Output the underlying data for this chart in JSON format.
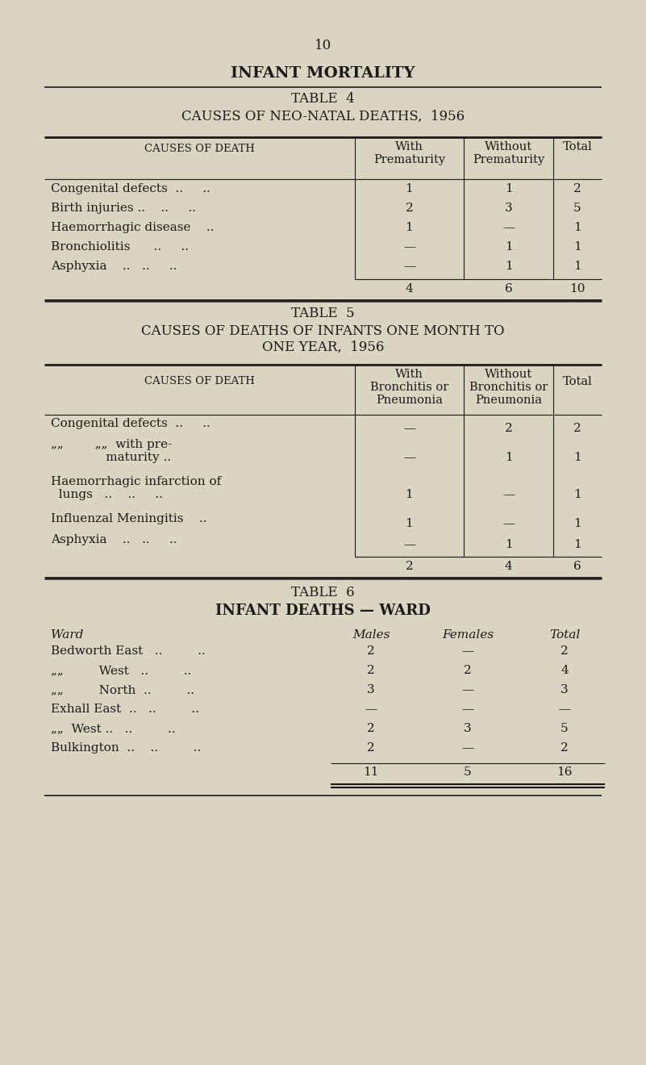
{
  "bg_color": "#d9d5c1",
  "page_num": "10",
  "main_title": "INFANT MORTALITY",
  "table4": {
    "title1": "TABLE  4",
    "title2": "CAUSES OF NEO-NATAL DEATHS,  1956",
    "col_header_left": "CAUSES OF DEATH",
    "col_header_c1": "With\nPrematurity",
    "col_header_c2": "Without\nPrematurity",
    "col_header_c3": "Total",
    "rows": [
      [
        "Congenital defects  ..     ..",
        "1",
        "1",
        "2"
      ],
      [
        "Birth injuries ..    ..     ..",
        "2",
        "3",
        "5"
      ],
      [
        "Haemorrhagic disease    ..",
        "1",
        "—",
        "1"
      ],
      [
        "Bronchiolitis      ..     ..",
        "—",
        "1",
        "1"
      ],
      [
        "Asphyxia    ..   ..     ..",
        "—",
        "1",
        "1"
      ]
    ],
    "total_row": [
      "",
      "4",
      "6",
      "10"
    ]
  },
  "table5": {
    "title1": "TABLE  5",
    "title2a": "CAUSES OF DEATHS OF INFANTS ONE MONTH TO",
    "title2b": "ONE YEAR,  1956",
    "col_header_left": "CAUSES OF DEATH",
    "col_header_c1": "With\nBronchitis or\nPneumonia",
    "col_header_c2": "Without\nBronchitis or\nPneumonia",
    "col_header_c3": "Total",
    "rows": [
      [
        "Congenital defects  ..     ..",
        "—",
        "2",
        "2"
      ],
      [
        "„„        „„  with pre-\n              maturity ..",
        "—",
        "1",
        "1"
      ],
      [
        "Haemorrhagic infarction of\n  lungs   ..    ..     ..",
        "1",
        "—",
        "1"
      ],
      [
        "Influenzal Meningitis    ..",
        "1",
        "—",
        "1"
      ],
      [
        "Asphyxia    ..   ..     ..",
        "—",
        "1",
        "1"
      ]
    ],
    "total_row": [
      "",
      "2",
      "4",
      "6"
    ]
  },
  "table6": {
    "title1": "TABLE  6",
    "title2": "INFANT DEATHS — WARD",
    "col_header_ward": "Ward",
    "col_header_males": "Males",
    "col_header_females": "Females",
    "col_header_total": "Total",
    "rows": [
      [
        "Bedworth East   ..         ..",
        "2",
        "—",
        "2"
      ],
      [
        "„„         West   ..         ..",
        "2",
        "2",
        "4"
      ],
      [
        "„„         North  ..         ..",
        "3",
        "—",
        "3"
      ],
      [
        "Exhall East  ..   ..         ..",
        "—",
        "—",
        "—"
      ],
      [
        "„„  West ..   ..         ..",
        "2",
        "3",
        "5"
      ],
      [
        "Bulkington  ..    ..         ..",
        "2",
        "—",
        "2"
      ]
    ],
    "total_row": [
      "",
      "11",
      "5",
      "16"
    ]
  }
}
